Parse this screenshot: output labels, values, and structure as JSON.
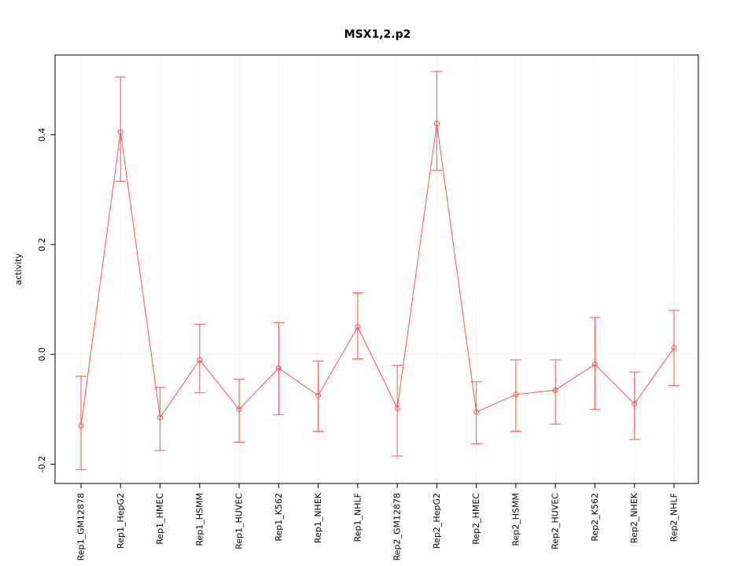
{
  "chart_data": {
    "type": "line",
    "title": "MSX1,2.p2",
    "xlabel": "",
    "ylabel": "activity",
    "ylim": [
      -0.235,
      0.545
    ],
    "yticks": [
      -0.2,
      0.0,
      0.2,
      0.4
    ],
    "grid": "vertical-dotted-per-category-plus-zero-line",
    "legend": "none",
    "categories": [
      "Rep1_GM12878",
      "Rep1_HepG2",
      "Rep1_HMEC",
      "Rep1_HSMM",
      "Rep1_HUVEC",
      "Rep1_K562",
      "Rep1_NHEK",
      "Rep1_NHLF",
      "Rep2_GM12878",
      "Rep2_HepG2",
      "Rep2_HMEC",
      "Rep2_HSMM",
      "Rep2_HUVEC",
      "Rep2_K562",
      "Rep2_NHEK",
      "Rep2_NHLF"
    ],
    "series": [
      {
        "name": "activity",
        "marker": "open-circle",
        "values": [
          -0.13,
          0.405,
          -0.115,
          -0.01,
          -0.1,
          -0.025,
          -0.075,
          0.05,
          -0.098,
          0.42,
          -0.105,
          -0.073,
          -0.065,
          -0.018,
          -0.09,
          0.012
        ],
        "ci_low": [
          -0.21,
          0.315,
          -0.175,
          -0.07,
          -0.16,
          -0.11,
          -0.14,
          -0.008,
          -0.185,
          0.335,
          -0.163,
          -0.14,
          -0.127,
          -0.1,
          -0.155,
          -0.057
        ],
        "ci_high": [
          -0.04,
          0.505,
          -0.06,
          0.055,
          -0.045,
          0.058,
          -0.012,
          0.112,
          -0.02,
          0.515,
          -0.05,
          -0.01,
          -0.01,
          0.067,
          -0.032,
          0.08
        ]
      }
    ],
    "colors": {
      "line": "#ff5252",
      "grid": "#d6d6d6",
      "axis": "#000000",
      "background": "#ffffff"
    }
  }
}
